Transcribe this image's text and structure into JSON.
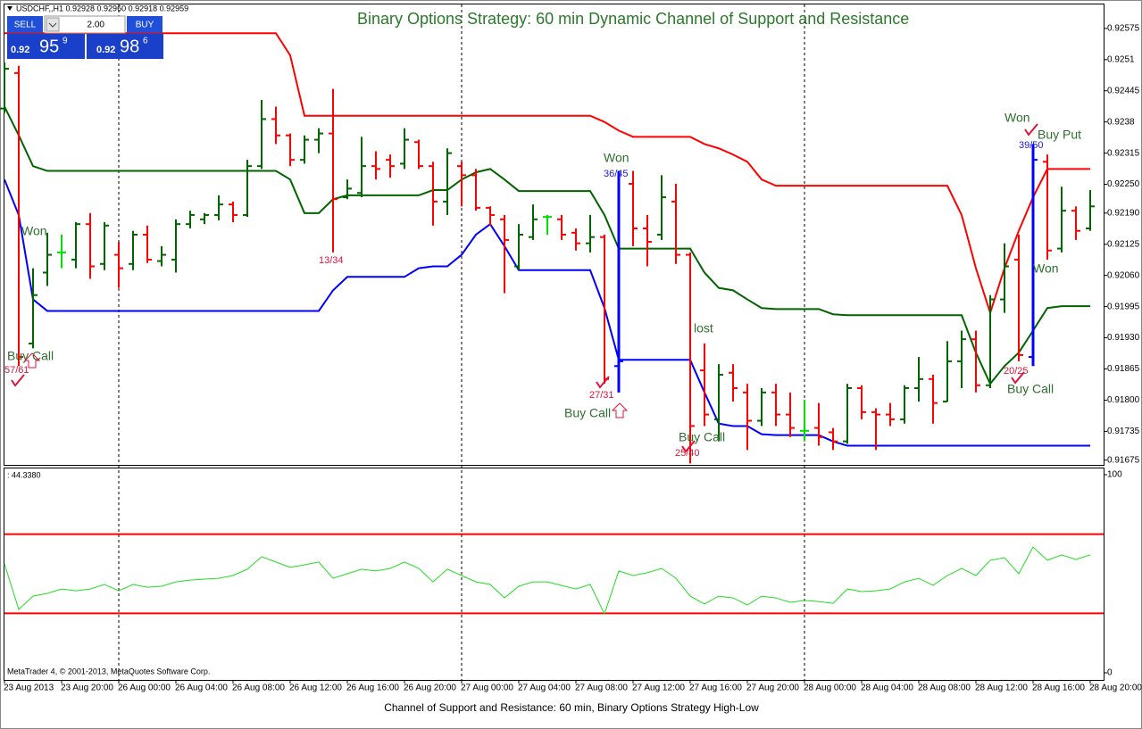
{
  "header": {
    "symbol_info": "USDCHF,,H1  0.92928 0.92960 0.92918 0.92959"
  },
  "trade_panel": {
    "sell_label": "SELL",
    "lot": "2.00",
    "buy_label": "BUY",
    "sell_price": {
      "base": "0.92",
      "big": "95",
      "pip": "9"
    },
    "buy_price": {
      "base": "0.92",
      "big": "98",
      "pip": "6"
    }
  },
  "caption": "Channel of Support and Resistance: 60 min, Binary Options Strategy High-Low",
  "chart_data": [
    {
      "type": "ohlc",
      "title": "Binary Options Strategy:   60 min Dynamic Channel of Support and Resistance",
      "categories": [
        "23 Aug 2013",
        null,
        null,
        null,
        "23 Aug 20:00",
        null,
        null,
        null,
        "26 Aug 00:00",
        null,
        null,
        null,
        "26 Aug 04:00",
        null,
        null,
        null,
        "26 Aug 08:00",
        null,
        null,
        null,
        "26 Aug 12:00",
        null,
        null,
        null,
        "26 Aug 16:00",
        null,
        null,
        null,
        "26 Aug 20:00",
        null,
        null,
        null,
        "27 Aug 00:00",
        null,
        null,
        null,
        "27 Aug 04:00",
        null,
        null,
        null,
        "27 Aug 08:00",
        null,
        null,
        null,
        "27 Aug 12:00",
        null,
        null,
        null,
        "27 Aug 16:00",
        null,
        null,
        null,
        "27 Aug 20:00",
        null,
        null,
        null,
        "28 Aug 00:00",
        null,
        null,
        null,
        "28 Aug 04:00",
        null,
        null,
        null,
        "28 Aug 08:00",
        null,
        null,
        null,
        "28 Aug 12:00",
        null,
        null,
        null,
        "28 Aug 16:00",
        null,
        null,
        null,
        "28 Aug 20:00"
      ],
      "ohlc": [
        [
          0.92408,
          0.92504,
          0.92399,
          0.92491
        ],
        [
          0.92482,
          0.92497,
          0.91871,
          0.9189
        ],
        [
          0.91918,
          0.92075,
          0.91908,
          0.92019
        ],
        [
          0.92066,
          0.92149,
          0.92038,
          0.92103
        ],
        [
          0.92108,
          0.92145,
          0.92075,
          0.92108
        ],
        [
          0.92093,
          0.92171,
          0.92075,
          0.92167
        ],
        [
          0.92167,
          0.9219,
          0.92053,
          0.92079
        ],
        [
          0.92084,
          0.92171,
          0.92071,
          0.92164
        ],
        [
          0.92103,
          0.9213,
          0.92034,
          0.92075
        ],
        [
          0.92084,
          0.92153,
          0.92071,
          0.92145
        ],
        [
          0.92145,
          0.92164,
          0.92086,
          0.92093
        ],
        [
          0.9209,
          0.92121,
          0.92079,
          0.92103
        ],
        [
          0.92093,
          0.92177,
          0.92066,
          0.92167
        ],
        [
          0.92167,
          0.92195,
          0.92158,
          0.92186
        ],
        [
          0.92177,
          0.9219,
          0.92167,
          0.92186
        ],
        [
          0.92186,
          0.92227,
          0.92175,
          0.92208
        ],
        [
          0.92208,
          0.92214,
          0.92171,
          0.92186
        ],
        [
          0.92186,
          0.92301,
          0.92182,
          0.92288
        ],
        [
          0.92288,
          0.92426,
          0.92282,
          0.92386
        ],
        [
          0.92386,
          0.92412,
          0.92334,
          0.92352
        ],
        [
          0.92352,
          0.92356,
          0.92288,
          0.92301
        ],
        [
          0.92301,
          0.92352,
          0.92293,
          0.92343
        ],
        [
          0.92343,
          0.92367,
          0.92315,
          0.92356
        ],
        [
          0.92356,
          0.92449,
          0.92108,
          0.92219
        ],
        [
          0.92223,
          0.9226,
          0.92219,
          0.92241
        ],
        [
          0.92232,
          0.92349,
          0.92223,
          0.92288
        ],
        [
          0.92288,
          0.92319,
          0.9226,
          0.92282
        ],
        [
          0.92301,
          0.92312,
          0.92264,
          0.92288
        ],
        [
          0.92293,
          0.92367,
          0.92282,
          0.92343
        ],
        [
          0.92338,
          0.92343,
          0.92282,
          0.92288
        ],
        [
          0.92288,
          0.92297,
          0.92164,
          0.92214
        ],
        [
          0.92214,
          0.92325,
          0.92186,
          0.92315
        ],
        [
          0.92288,
          0.92297,
          0.92204,
          0.92269
        ],
        [
          0.92269,
          0.92282,
          0.92195,
          0.92201
        ],
        [
          0.92201,
          0.92204,
          0.92164,
          0.92186
        ],
        [
          0.92177,
          0.92186,
          0.92023,
          0.92134
        ],
        [
          0.92079,
          0.92167,
          0.92071,
          0.92145
        ],
        [
          0.9214,
          0.92208,
          0.92134,
          0.92177
        ],
        [
          0.92182,
          0.92186,
          0.92145,
          0.92182
        ],
        [
          0.92177,
          0.92186,
          0.92134,
          0.92145
        ],
        [
          0.92149,
          0.92158,
          0.92112,
          0.92127
        ],
        [
          0.92127,
          0.92186,
          0.92108,
          0.9214
        ],
        [
          0.9214,
          0.92145,
          0.91834,
          0.91844
        ],
        [
          0.91871,
          0.92278,
          0.91816,
          0.91881
        ],
        [
          0.92251,
          0.92278,
          0.92121,
          0.92158
        ],
        [
          0.92158,
          0.92186,
          0.92079,
          0.9213
        ],
        [
          0.92145,
          0.92269,
          0.92134,
          0.92223
        ],
        [
          0.92214,
          0.92251,
          0.92084,
          0.92103
        ],
        [
          0.92103,
          0.92108,
          0.91668,
          0.91746
        ],
        [
          0.91862,
          0.91918,
          0.91746,
          0.9177
        ],
        [
          0.9176,
          0.91875,
          0.91714,
          0.91853
        ],
        [
          0.91857,
          0.91875,
          0.91797,
          0.91825
        ],
        [
          0.91816,
          0.91834,
          0.91696,
          0.91757
        ],
        [
          0.91757,
          0.91825,
          0.91746,
          0.91816
        ],
        [
          0.91816,
          0.91834,
          0.91746,
          0.9177
        ],
        [
          0.9177,
          0.91816,
          0.91723,
          0.91742
        ],
        [
          0.91736,
          0.91801,
          0.91714,
          0.91736
        ],
        [
          0.91742,
          0.91794,
          0.91705,
          0.91723
        ],
        [
          0.91733,
          0.91742,
          0.91696,
          0.91714
        ],
        [
          0.91714,
          0.91834,
          0.91709,
          0.91825
        ],
        [
          0.91825,
          0.91831,
          0.9176,
          0.91775
        ],
        [
          0.91775,
          0.91783,
          0.91696,
          0.9177
        ],
        [
          0.9177,
          0.91794,
          0.91746,
          0.9176
        ],
        [
          0.9176,
          0.91831,
          0.91751,
          0.91825
        ],
        [
          0.91825,
          0.9189,
          0.91797,
          0.91844
        ],
        [
          0.91844,
          0.91853,
          0.91751,
          0.91794
        ],
        [
          0.91797,
          0.91923,
          0.91797,
          0.91881
        ],
        [
          0.91881,
          0.91945,
          0.91825,
          0.91927
        ],
        [
          0.91927,
          0.91945,
          0.91816,
          0.91831
        ],
        [
          0.91831,
          0.92019,
          0.91825,
          0.9201
        ],
        [
          0.9201,
          0.92127,
          0.91982,
          0.92079
        ],
        [
          0.92093,
          0.92145,
          0.91881,
          0.91894
        ],
        [
          0.9189,
          0.92334,
          0.91871,
          0.92301
        ],
        [
          0.92297,
          0.92312,
          0.92093,
          0.92112
        ],
        [
          0.92116,
          0.92245,
          0.92108,
          0.92195
        ],
        [
          0.92195,
          0.92204,
          0.92134,
          0.92153
        ],
        [
          0.92158,
          0.92238,
          0.92153,
          0.92204
        ]
      ],
      "up_color": "#006400",
      "down_color": "#ff0000",
      "doji_color": "#00e000",
      "signal_color": "#0000ff",
      "signal_candles": [
        43,
        72
      ],
      "series": [
        {
          "color": "#ff0000",
          "values": [
            0.92565,
            0.92565,
            0.92565,
            0.92565,
            0.92565,
            0.92565,
            0.92565,
            0.92565,
            0.92565,
            0.92565,
            0.92565,
            0.92565,
            0.92565,
            0.92565,
            0.92565,
            0.92565,
            0.92565,
            0.92565,
            0.92565,
            0.92565,
            0.92519,
            0.92393,
            0.92393,
            0.92393,
            0.92393,
            0.92393,
            0.92393,
            0.92393,
            0.92393,
            0.92393,
            0.92393,
            0.92393,
            0.92393,
            0.92393,
            0.92393,
            0.92393,
            0.92393,
            0.92393,
            0.92393,
            0.92393,
            0.92393,
            0.92393,
            0.9238,
            0.92362,
            0.92349,
            0.92349,
            0.92349,
            0.92349,
            0.92349,
            0.92334,
            0.92325,
            0.92312,
            0.92297,
            0.9226,
            0.92247,
            0.92247,
            0.92247,
            0.92247,
            0.92247,
            0.92247,
            0.92247,
            0.92247,
            0.92247,
            0.92247,
            0.92247,
            0.92247,
            0.92247,
            0.92186,
            0.92075,
            0.91982,
            0.92075,
            0.92153,
            0.92223,
            0.92282,
            0.92282,
            0.92282,
            0.92282
          ]
        },
        {
          "color": "#006400",
          "values": [
            0.92412,
            0.92352,
            0.92288,
            0.92278,
            0.92278,
            0.92278,
            0.92278,
            0.92278,
            0.92278,
            0.92278,
            0.92278,
            0.92278,
            0.92278,
            0.92278,
            0.92278,
            0.92278,
            0.92278,
            0.92278,
            0.92278,
            0.92278,
            0.9226,
            0.9219,
            0.9219,
            0.92219,
            0.92227,
            0.92227,
            0.92227,
            0.92227,
            0.92227,
            0.92227,
            0.92238,
            0.92238,
            0.9226,
            0.92275,
            0.92282,
            0.9226,
            0.92236,
            0.92236,
            0.92236,
            0.92236,
            0.92236,
            0.92236,
            0.92186,
            0.92116,
            0.92116,
            0.92116,
            0.92116,
            0.92116,
            0.92116,
            0.92066,
            0.92034,
            0.92029,
            0.9201,
            0.91992,
            0.9199,
            0.9199,
            0.9199,
            0.9199,
            0.91979,
            0.91977,
            0.91977,
            0.91977,
            0.91977,
            0.91977,
            0.91977,
            0.91977,
            0.91977,
            0.91977,
            0.91899,
            0.91834,
            0.91871,
            0.91899,
            0.91945,
            0.91992,
            0.91996,
            0.91996,
            0.91996
          ]
        },
        {
          "color": "#0000ff",
          "values": [
            0.9226,
            0.92186,
            0.9201,
            0.91986,
            0.91986,
            0.91986,
            0.91986,
            0.91986,
            0.91986,
            0.91986,
            0.91986,
            0.91986,
            0.91986,
            0.91986,
            0.91986,
            0.91986,
            0.91986,
            0.91986,
            0.91986,
            0.91986,
            0.91986,
            0.91986,
            0.91986,
            0.92029,
            0.92057,
            0.92057,
            0.92057,
            0.92057,
            0.92057,
            0.92075,
            0.92079,
            0.92079,
            0.92103,
            0.92145,
            0.92167,
            0.92121,
            0.92071,
            0.92071,
            0.92071,
            0.92071,
            0.92071,
            0.92071,
            0.91992,
            0.91884,
            0.91884,
            0.91884,
            0.91884,
            0.91884,
            0.91884,
            0.91816,
            0.91751,
            0.91746,
            0.91746,
            0.91729,
            0.91727,
            0.91727,
            0.91727,
            0.91727,
            0.91714,
            0.91705,
            0.91705,
            0.91705,
            0.91705,
            0.91705,
            0.91705,
            0.91705,
            0.91705,
            0.91705,
            0.91705,
            0.91705,
            0.91705,
            0.91705,
            0.91705,
            0.91705,
            0.91705,
            0.91705,
            0.91705
          ]
        }
      ],
      "ylim": [
        0.91665,
        0.92625
      ],
      "yticks": [
        0.92575,
        0.9251,
        0.92445,
        0.9238,
        0.92315,
        {
          "value": 0.9225,
          "label": "0.92250"
        },
        {
          "value": 0.9219,
          "label": "0.92190"
        },
        0.92125,
        {
          "value": 0.9206,
          "label": "0.92060"
        },
        0.91995,
        {
          "value": 0.9193,
          "label": "0.91930"
        },
        0.91865,
        {
          "value": 0.918,
          "label": "0.91800"
        },
        0.91735,
        0.91675
      ],
      "grid": false,
      "annotations": [
        "Won",
        "Buy Call",
        "57/61",
        "13/34",
        "Won",
        "36/45",
        "27/31",
        "Buy Call",
        "lost",
        "Buy Call",
        "25/40",
        "Won",
        "Buy Put",
        "39/50",
        "Won",
        "20/25",
        "Buy Call"
      ]
    },
    {
      "type": "line",
      "label": ": 44.3380",
      "note": "MetaTrader 4, © 2001-2013, MetaQuotes Software Corp.",
      "color": "#22dd22",
      "values": [
        55.0,
        32.0,
        38.7,
        40.1,
        42.3,
        41.4,
        42.3,
        44.6,
        41.4,
        44.6,
        43.2,
        43.7,
        45.9,
        46.8,
        47.3,
        47.7,
        49.1,
        52.3,
        58.6,
        55.9,
        53.2,
        54.5,
        55.9,
        47.7,
        50.0,
        52.3,
        51.4,
        52.7,
        55.9,
        52.7,
        45.9,
        52.3,
        49.1,
        45.9,
        44.6,
        37.8,
        43.7,
        45.9,
        45.9,
        44.1,
        42.3,
        44.6,
        29.7,
        51.4,
        49.1,
        50.5,
        52.7,
        47.7,
        38.7,
        34.7,
        38.7,
        37.8,
        34.2,
        38.7,
        37.8,
        35.6,
        36.5,
        36.0,
        35.1,
        42.3,
        41.0,
        41.4,
        42.3,
        45.9,
        47.7,
        44.1,
        49.1,
        52.7,
        49.1,
        56.8,
        58.1,
        50.0,
        63.5,
        56.8,
        59.5,
        57.2,
        59.5
      ],
      "levels": [
        30,
        70
      ],
      "level_color": "#ff0000",
      "ylim": [
        0,
        100
      ],
      "yticks": [
        0,
        100
      ]
    }
  ]
}
